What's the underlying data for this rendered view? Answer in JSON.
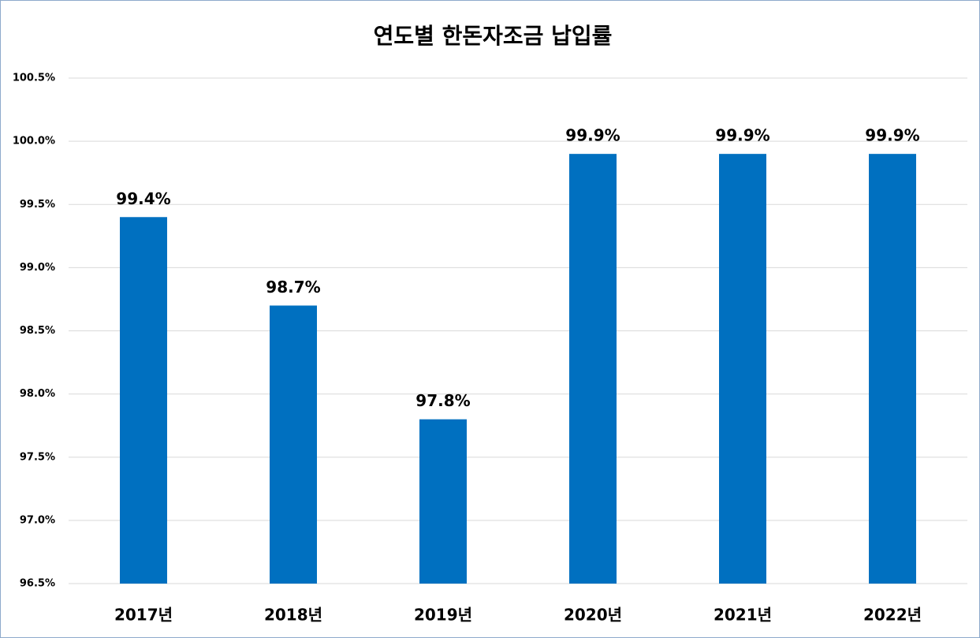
{
  "chart_data": {
    "type": "bar",
    "title": "연도별 한돈자조금 납입률",
    "categories": [
      "2017년",
      "2018년",
      "2019년",
      "2020년",
      "2021년",
      "2022년"
    ],
    "values": [
      99.4,
      98.7,
      97.8,
      99.9,
      99.9,
      99.9
    ],
    "value_labels": [
      "99.4%",
      "98.7%",
      "97.8%",
      "99.9%",
      "99.9%",
      "99.9%"
    ],
    "color": "#0070c0",
    "ylim": [
      96.5,
      100.5
    ],
    "yticks": [
      {
        "value": 96.5,
        "label": "96.5%"
      },
      {
        "value": 97,
        "label": "97.0%"
      },
      {
        "value": 97.5,
        "label": "97.5%"
      },
      {
        "value": 98,
        "label": "98.0%"
      },
      {
        "value": 98.5,
        "label": "98.5%"
      },
      {
        "value": 99,
        "label": "99.0%"
      },
      {
        "value": 99.5,
        "label": "99.5%"
      },
      {
        "value": 100,
        "label": "100.0%"
      },
      {
        "value": 100.5,
        "label": "100.5%"
      }
    ],
    "grid": true
  }
}
